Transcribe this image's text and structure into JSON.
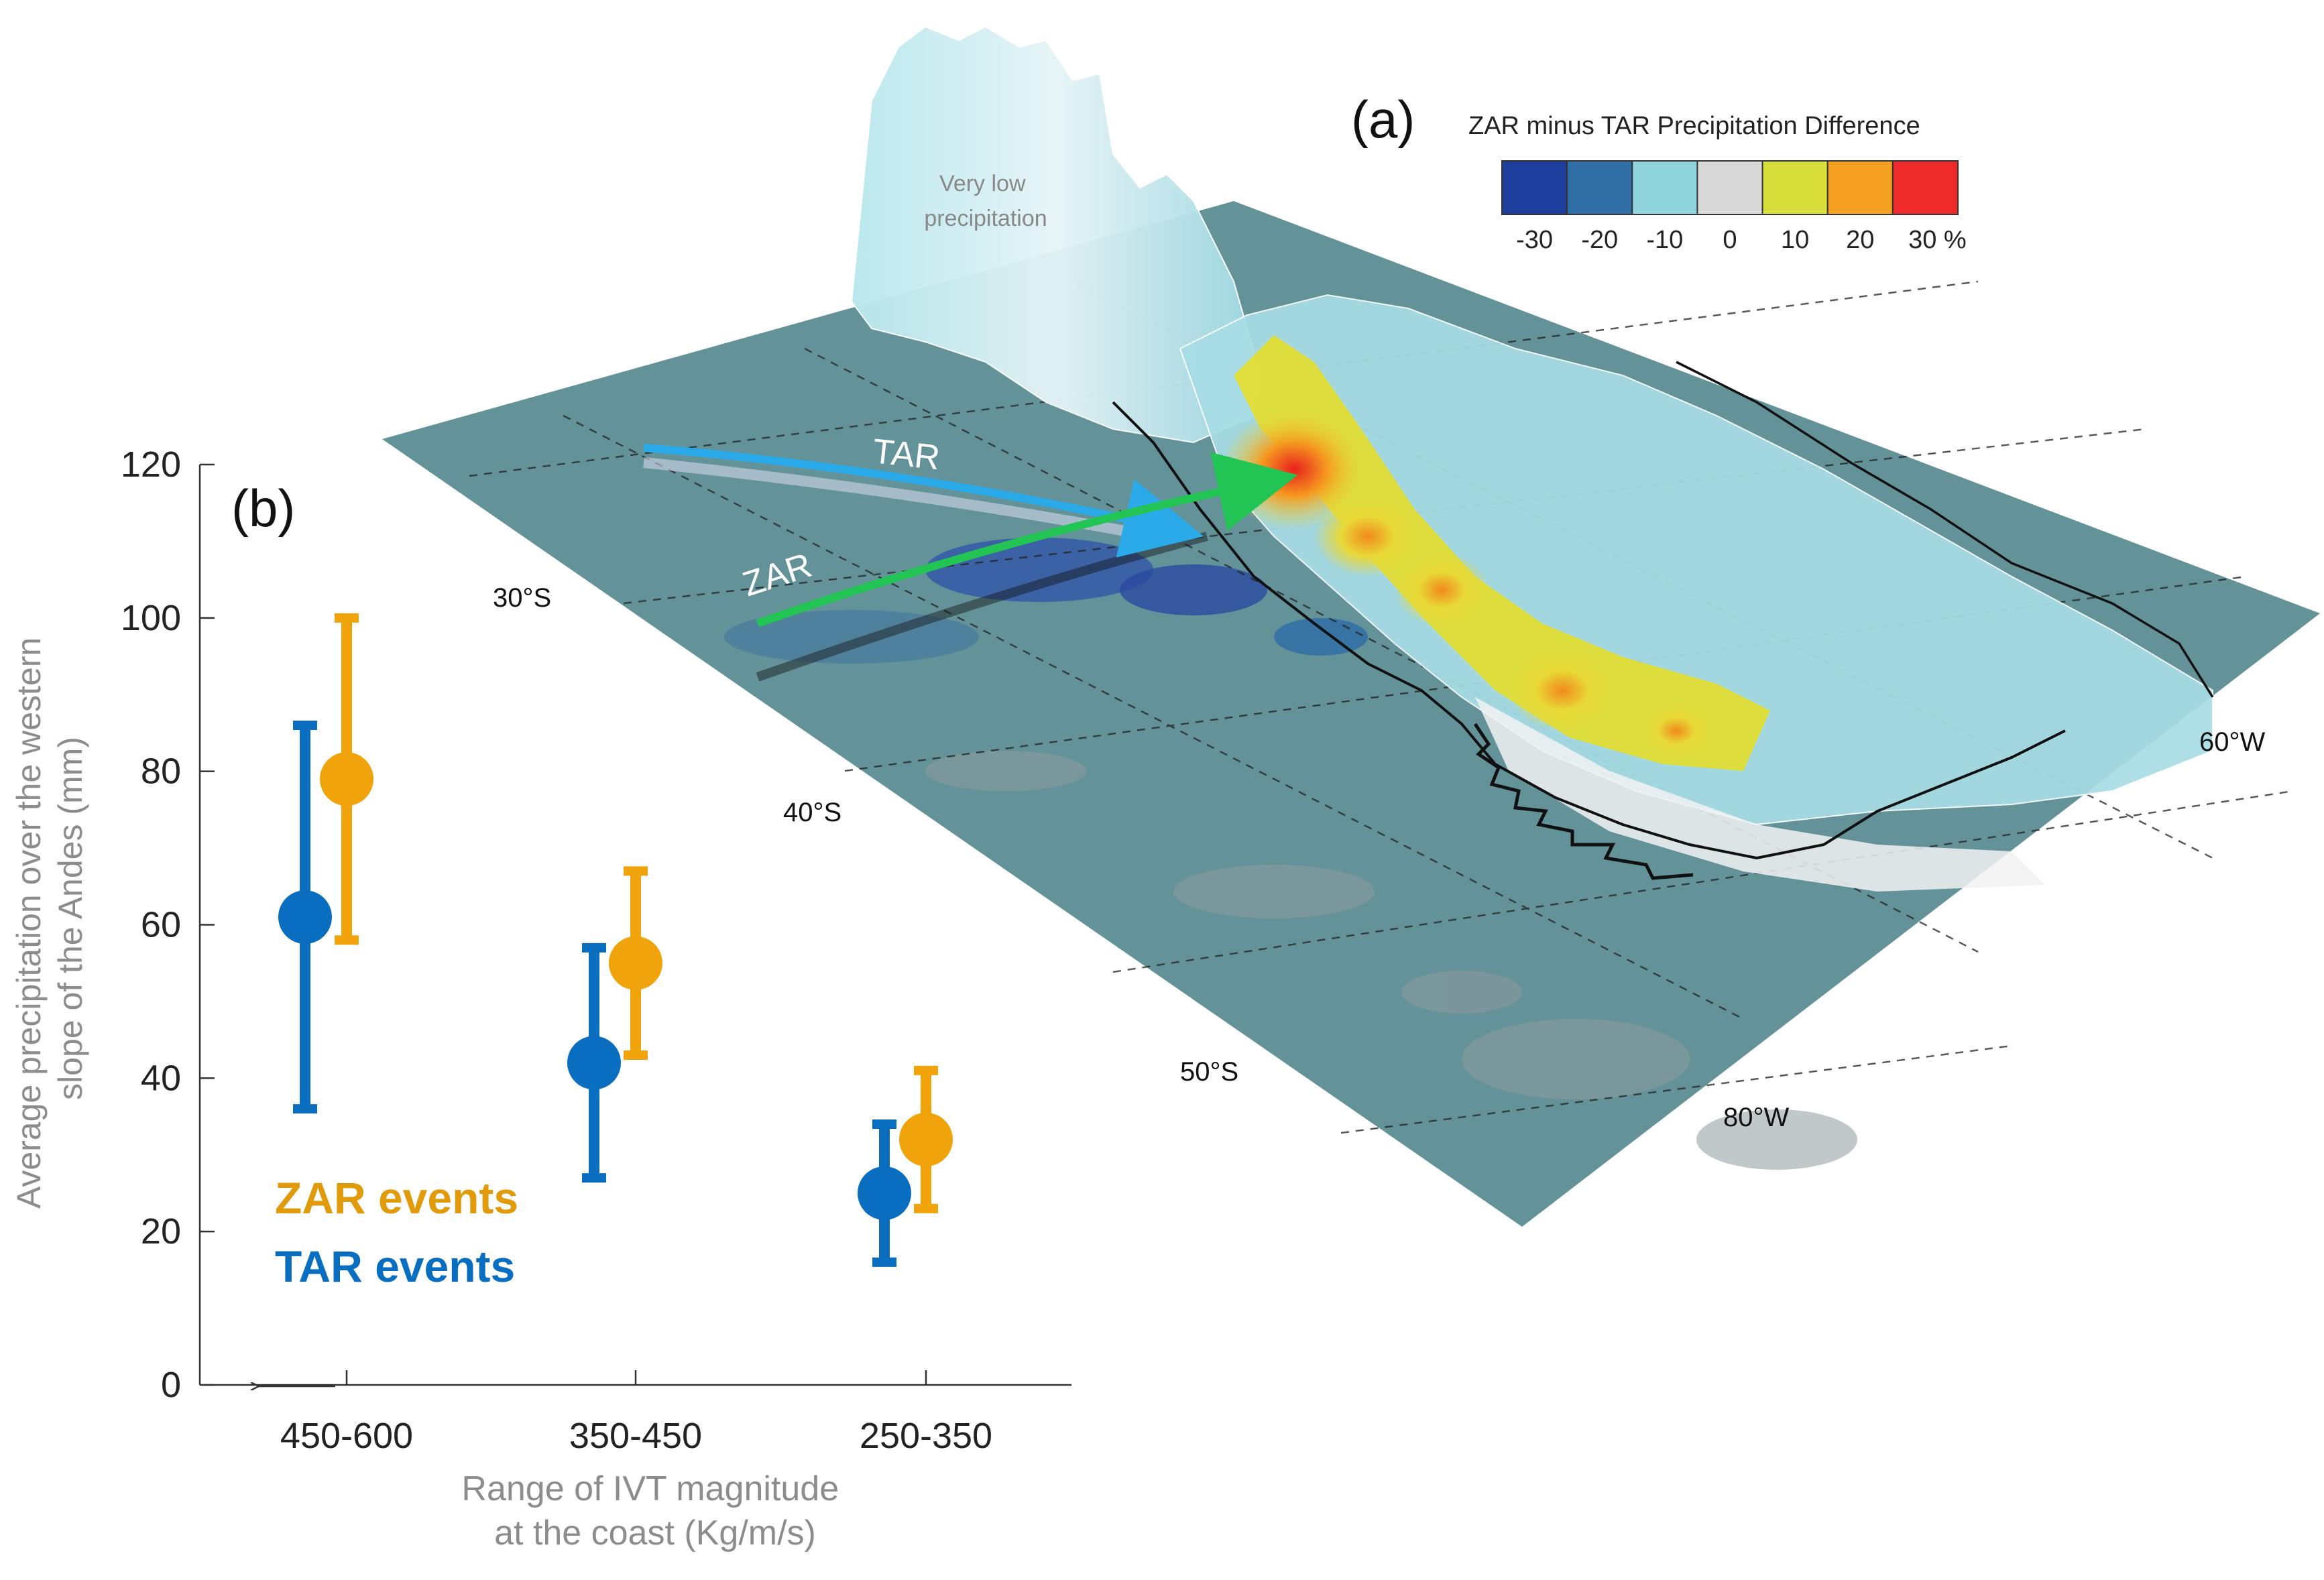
{
  "panel_a": {
    "label": "(a)",
    "legend": {
      "title": "ZAR minus TAR Precipitation Difference",
      "colors": [
        "#1f3f9e",
        "#2f6fa6",
        "#8fd4dc",
        "#d9d9d9",
        "#d9df3a",
        "#f5a020",
        "#ee2a2a"
      ],
      "ticks": [
        "-30",
        "-20",
        "-10",
        "0",
        "10",
        "20",
        "30 %"
      ]
    },
    "annotation": "Very low\nprecipitation",
    "arrow_tar": "TAR",
    "arrow_zar": "ZAR",
    "lat_labels": [
      "30°S",
      "40°S",
      "50°S"
    ],
    "lon_labels": [
      "60°W",
      "80°W"
    ],
    "colors": {
      "ocean": "#5b8d94",
      "tar_arrow": "#2aaae8",
      "zar_arrow": "#22c454"
    }
  },
  "chart_data": {
    "type": "scatter",
    "panel_label": "(b)",
    "categories": [
      "450-600",
      "350-450",
      "250-350"
    ],
    "xlabel": "Range of IVT magnitude\nat the coast (Kg/m/s)",
    "ylabel": "Average precipitation over the western\nslope of the Andes (mm)",
    "ylim": [
      0,
      120
    ],
    "yticks": [
      "0",
      "20",
      "40",
      "60",
      "80",
      "100",
      "120"
    ],
    "grid": false,
    "series": [
      {
        "name": "ZAR events",
        "color": "#f0a30a",
        "values": [
          79,
          55,
          32
        ],
        "lower": [
          58,
          43,
          23
        ],
        "upper": [
          100,
          67,
          41
        ]
      },
      {
        "name": "TAR events",
        "color": "#0a6ec0",
        "values": [
          61,
          42,
          25
        ],
        "lower": [
          36,
          27,
          16
        ],
        "upper": [
          86,
          57,
          34
        ]
      }
    ]
  }
}
